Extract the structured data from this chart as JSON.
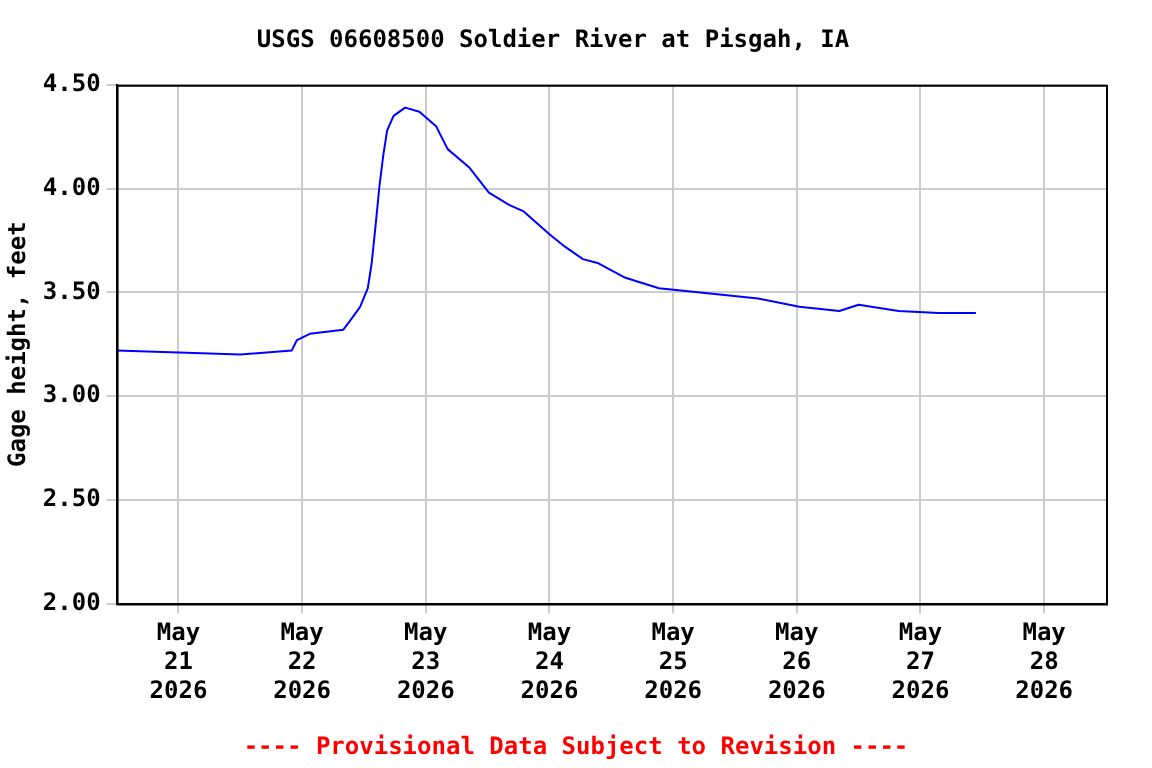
{
  "chart_data": {
    "type": "line",
    "title": "USGS 06608500 Soldier River at Pisgah, IA",
    "ylabel": "Gage height, feet",
    "annotations": [
      "---- Provisional Data Subject to Revision ----"
    ],
    "x": [
      "2026-05-20T12:00",
      "2026-05-21T00:00",
      "2026-05-21T12:00",
      "2026-05-21T22:00",
      "2026-05-21T23:00",
      "2026-05-22T01:30",
      "2026-05-22T08:00",
      "2026-05-22T09:30",
      "2026-05-22T11:15",
      "2026-05-22T12:45",
      "2026-05-22T13:30",
      "2026-05-22T14:15",
      "2026-05-22T15:00",
      "2026-05-22T15:45",
      "2026-05-22T16:30",
      "2026-05-22T17:45",
      "2026-05-22T20:00",
      "2026-05-22T22:45",
      "2026-05-23T02:00",
      "2026-05-23T04:15",
      "2026-05-23T08:30",
      "2026-05-23T12:15",
      "2026-05-23T16:15",
      "2026-05-23T19:00",
      "2026-05-24T00:00",
      "2026-05-24T03:00",
      "2026-05-24T06:30",
      "2026-05-24T09:30",
      "2026-05-24T14:45",
      "2026-05-24T21:15",
      "2026-05-25T09:00",
      "2026-05-25T16:30",
      "2026-05-26T00:30",
      "2026-05-26T08:15",
      "2026-05-26T12:00",
      "2026-05-26T19:45",
      "2026-05-27T03:30",
      "2026-05-27T10:45"
    ],
    "series": [
      {
        "color": "#0000ff",
        "values": [
          3.22,
          3.21,
          3.2,
          3.22,
          3.27,
          3.3,
          3.32,
          3.37,
          3.43,
          3.52,
          3.64,
          3.82,
          4.01,
          4.16,
          4.28,
          4.35,
          4.39,
          4.37,
          4.3,
          4.19,
          4.1,
          3.98,
          3.92,
          3.89,
          3.78,
          3.72,
          3.66,
          3.64,
          3.57,
          3.52,
          3.49,
          3.47,
          3.43,
          3.41,
          3.44,
          3.41,
          3.4,
          3.4
        ]
      }
    ],
    "xlim": [
      "2026-05-20T12:00",
      "2026-05-28T12:00"
    ],
    "xticks": [
      {
        "value": "2026-05-21",
        "label": "May 21 2026"
      },
      {
        "value": "2026-05-22",
        "label": "May 22 2026"
      },
      {
        "value": "2026-05-23",
        "label": "May 23 2026"
      },
      {
        "value": "2026-05-24",
        "label": "May 24 2026"
      },
      {
        "value": "2026-05-25",
        "label": "May 25 2026"
      },
      {
        "value": "2026-05-26",
        "label": "May 26 2026"
      },
      {
        "value": "2026-05-27",
        "label": "May 27 2026"
      },
      {
        "value": "2026-05-28",
        "label": "May 28 2026"
      }
    ],
    "ylim": [
      2.0,
      4.5
    ],
    "yticks": [
      {
        "value": 2.0,
        "label": "2.00"
      },
      {
        "value": 2.5,
        "label": "2.50"
      },
      {
        "value": 3.0,
        "label": "3.00"
      },
      {
        "value": 3.5,
        "label": "3.50"
      },
      {
        "value": 4.0,
        "label": "4.00"
      },
      {
        "value": 4.5,
        "label": "4.50"
      }
    ],
    "grid": true,
    "legend": false,
    "marker": "none",
    "line_style": "solid"
  }
}
